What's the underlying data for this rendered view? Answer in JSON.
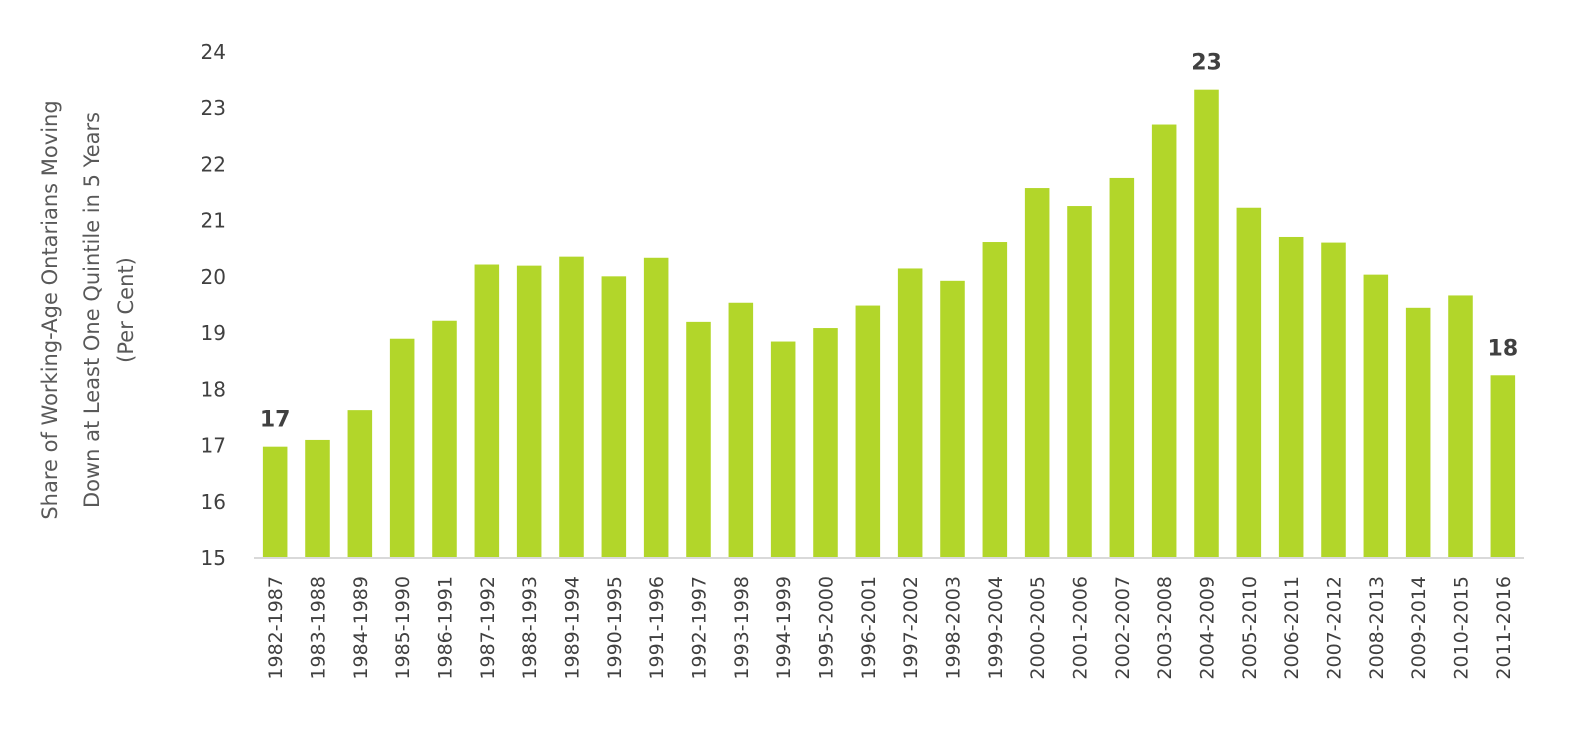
{
  "chart_data": {
    "type": "bar",
    "ylabel_lines": [
      "Share of Working-Age Ontarians Moving",
      "Down at Least One Quintile in 5 Years",
      "(Per Cent)"
    ],
    "ylim": [
      15,
      24
    ],
    "yticks": [
      15,
      16,
      17,
      18,
      19,
      20,
      21,
      22,
      23,
      24
    ],
    "grid": false,
    "bar_color": "#b2d62a",
    "categories": [
      "1982-1987",
      "1983-1988",
      "1984-1989",
      "1985-1990",
      "1986-1991",
      "1987-1992",
      "1988-1993",
      "1989-1994",
      "1990-1995",
      "1991-1996",
      "1992-1997",
      "1993-1998",
      "1994-1999",
      "1995-2000",
      "1996-2001",
      "1997-2002",
      "1998-2003",
      "1999-2004",
      "2000-2005",
      "2001-2006",
      "2002-2007",
      "2003-2008",
      "2004-2009",
      "2005-2010",
      "2006-2011",
      "2007-2012",
      "2008-2013",
      "2009-2014",
      "2010-2015",
      "2011-2016"
    ],
    "values": [
      16.98,
      17.1,
      17.63,
      18.9,
      19.22,
      20.22,
      20.2,
      20.36,
      20.01,
      20.34,
      19.2,
      19.54,
      18.85,
      19.09,
      19.49,
      20.15,
      19.93,
      20.62,
      21.58,
      21.26,
      21.76,
      22.71,
      23.33,
      21.23,
      20.71,
      20.61,
      20.04,
      19.45,
      19.67,
      18.25
    ],
    "data_labels": [
      {
        "index": 0,
        "text": "17"
      },
      {
        "index": 22,
        "text": "23"
      },
      {
        "index": 29,
        "text": "18"
      }
    ]
  }
}
